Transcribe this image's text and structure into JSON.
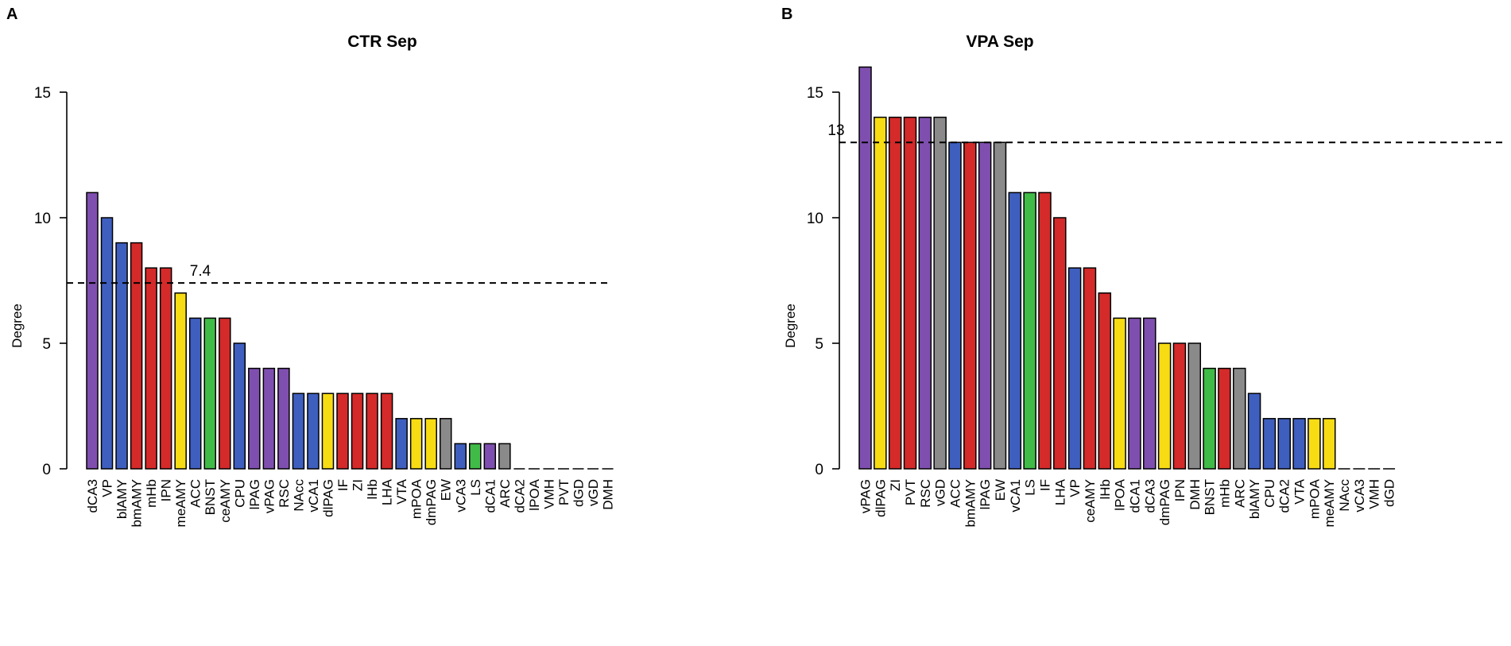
{
  "colors": {
    "purple": "#7f4fb0",
    "blue": "#3f5fbf",
    "red": "#d42a2a",
    "yellow": "#f7dc14",
    "green": "#41bb48",
    "gray": "#8a8a8a"
  },
  "chart_data": [
    {
      "type": "bar",
      "panel": "A",
      "title": "CTR Sep",
      "xlabel": "",
      "ylabel": "Degree",
      "ylim": [
        0,
        15
      ],
      "yticks": [
        0,
        5,
        10,
        15
      ],
      "reference_line": {
        "value": 7.4,
        "label": "7.4",
        "style": "dashed"
      },
      "categories": [
        "dCA3",
        "VP",
        "blAMY",
        "bmAMY",
        "mHb",
        "IPN",
        "meAMY",
        "ACC",
        "BNST",
        "ceAMY",
        "CPU",
        "lPAG",
        "vPAG",
        "RSC",
        "NAcc",
        "vCA1",
        "dlPAG",
        "IF",
        "ZI",
        "lHb",
        "LHA",
        "VTA",
        "mPOA",
        "dmPAG",
        "EW",
        "vCA3",
        "LS",
        "dCA1",
        "ARC",
        "dCA2",
        "lPOA",
        "VMH",
        "PVT",
        "dGD",
        "vGD",
        "DMH"
      ],
      "values": [
        11,
        10,
        9,
        9,
        8,
        8,
        7,
        6,
        6,
        6,
        5,
        4,
        4,
        4,
        3,
        3,
        3,
        3,
        3,
        3,
        3,
        2,
        2,
        2,
        2,
        1,
        1,
        1,
        1,
        0,
        0,
        0,
        0,
        0,
        0,
        0
      ],
      "bar_colors": [
        "purple",
        "blue",
        "blue",
        "red",
        "red",
        "red",
        "yellow",
        "blue",
        "green",
        "red",
        "blue",
        "purple",
        "purple",
        "purple",
        "blue",
        "blue",
        "yellow",
        "red",
        "red",
        "red",
        "red",
        "blue",
        "yellow",
        "yellow",
        "gray",
        "blue",
        "green",
        "purple",
        "gray",
        "gray",
        "gray",
        "gray",
        "gray",
        "gray",
        "gray",
        "gray"
      ]
    },
    {
      "type": "bar",
      "panel": "B",
      "title": "VPA Sep",
      "xlabel": "",
      "ylabel": "Degree",
      "ylim": [
        0,
        15
      ],
      "yticks": [
        0,
        5,
        10,
        15
      ],
      "reference_line": {
        "value": 13,
        "label": "13",
        "style": "dashed"
      },
      "categories": [
        "vPAG",
        "dlPAG",
        "ZI",
        "PVT",
        "RSC",
        "vGD",
        "ACC",
        "bmAMY",
        "lPAG",
        "EW",
        "vCA1",
        "LS",
        "IF",
        "LHA",
        "VP",
        "ceAMY",
        "lHb",
        "lPOA",
        "dCA1",
        "dCA3",
        "dmPAG",
        "IPN",
        "DMH",
        "BNST",
        "mHb",
        "ARC",
        "blAMY",
        "CPU",
        "dCA2",
        "VTA",
        "mPOA",
        "meAMY",
        "NAcc",
        "vCA3",
        "VMH",
        "dGD"
      ],
      "values": [
        16,
        14,
        14,
        14,
        14,
        14,
        13,
        13,
        13,
        13,
        11,
        11,
        11,
        10,
        8,
        8,
        7,
        6,
        6,
        6,
        5,
        5,
        5,
        4,
        4,
        4,
        3,
        2,
        2,
        2,
        2,
        2,
        0,
        0,
        0,
        0
      ],
      "bar_colors": [
        "purple",
        "yellow",
        "red",
        "red",
        "purple",
        "gray",
        "blue",
        "red",
        "purple",
        "gray",
        "blue",
        "green",
        "red",
        "red",
        "blue",
        "red",
        "red",
        "yellow",
        "purple",
        "purple",
        "yellow",
        "red",
        "gray",
        "green",
        "red",
        "gray",
        "blue",
        "blue",
        "blue",
        "blue",
        "yellow",
        "yellow",
        "gray",
        "gray",
        "gray",
        "gray"
      ]
    }
  ]
}
